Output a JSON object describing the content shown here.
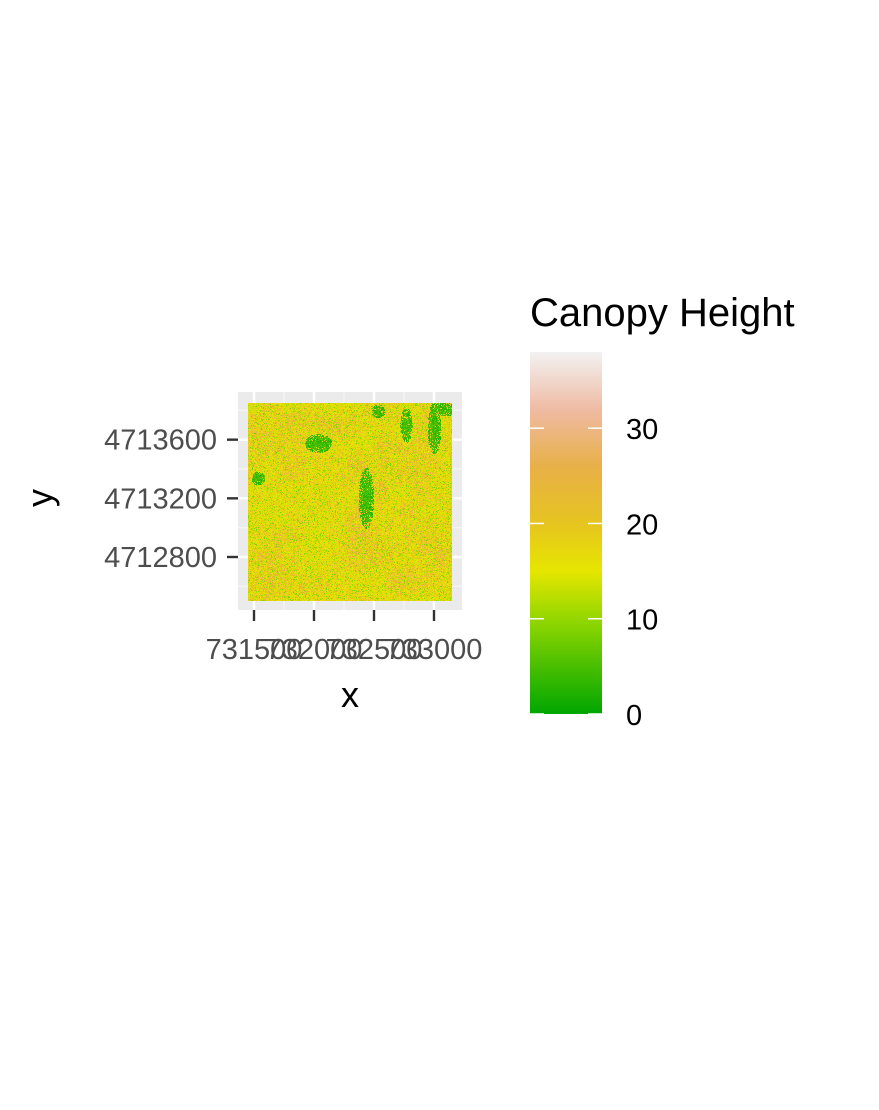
{
  "chart_data": {
    "type": "heatmap",
    "title": "",
    "xlabel": "x",
    "ylabel": "y",
    "x_ticks": [
      731500,
      732000,
      732500,
      733000
    ],
    "x_tick_labels": [
      "731500",
      "732000",
      "732500",
      "733000"
    ],
    "y_ticks": [
      4712800,
      4713200,
      4713600
    ],
    "y_tick_labels": [
      "4712800",
      "4713200",
      "4713600"
    ],
    "xlim": [
      731450,
      733150
    ],
    "ylim": [
      4712500,
      4713850
    ],
    "raster_extent": {
      "x": [
        731450,
        733150
      ],
      "y": [
        4712500,
        4713850
      ]
    },
    "value_range": [
      0,
      38
    ],
    "grid": true,
    "legend": {
      "title": "Canopy Height",
      "placement": "right",
      "breaks": [
        0,
        10,
        20,
        30
      ],
      "labels": [
        "0",
        "10",
        "20",
        "30"
      ],
      "colors": [
        {
          "value": 0,
          "color": "#00a600"
        },
        {
          "value": 9.5,
          "color": "#8cd500"
        },
        {
          "value": 15,
          "color": "#e6e600"
        },
        {
          "value": 20,
          "color": "#e6c420"
        },
        {
          "value": 26,
          "color": "#e8b048"
        },
        {
          "value": 32,
          "color": "#efbba4"
        },
        {
          "value": 38,
          "color": "#f2f2f2"
        }
      ]
    }
  }
}
